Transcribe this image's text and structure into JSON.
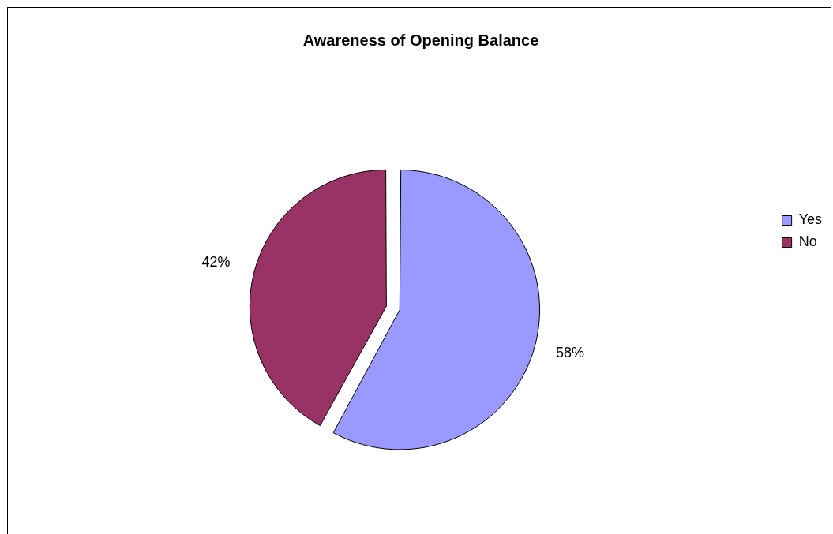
{
  "chart_data": {
    "type": "pie",
    "title": "Awareness of Opening Balance",
    "categories": [
      "Yes",
      "No"
    ],
    "values": [
      58,
      42
    ],
    "colors": [
      "#9999ff",
      "#993366"
    ],
    "value_labels": [
      "58%",
      "42%"
    ],
    "legend": "right"
  }
}
